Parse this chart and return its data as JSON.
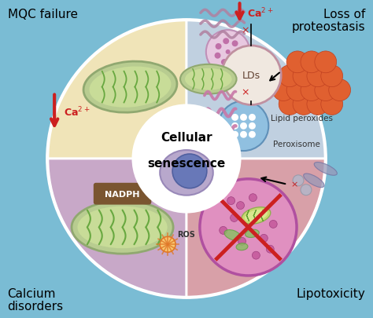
{
  "background_color": "#7abcd4",
  "quadrant_colors": {
    "top_left": "#f0e4b8",
    "top_right": "#c0d0e0",
    "bottom_left": "#c8a8c8",
    "bottom_right": "#d8a0a8"
  },
  "center_circle_color": "#ffffff",
  "center_text": [
    "Cellular",
    "senescence"
  ],
  "corner_labels": {
    "top_left": "MQC failure",
    "top_right_1": "Loss of",
    "top_right_2": "proteostasis",
    "bottom_left_1": "Calcium",
    "bottom_left_2": "disorders",
    "bottom_right": "Lipotoxicity"
  },
  "colors": {
    "mito_outer_border": "#90a870",
    "mito_outer_fill": "#b8cc90",
    "mito_inner_fill": "#c8dc98",
    "mito_crista": "#68a840",
    "nadph_box": "#7a5530",
    "lysosome_fill": "#e090c0",
    "lysosome_border": "#b050a0",
    "peroxisome_fill": "#90c0e0",
    "peroxisome_border": "#6090b8",
    "lipid_fill": "#e06030",
    "lipid_border": "#c04020",
    "lds_fill": "#f0e8e0",
    "lds_border": "#c090a0",
    "ca_arrow_up": "#cc2020",
    "ca_arrow_down": "#2030a0",
    "cell_body": "#b8a8cc",
    "cell_nucleus": "#6878b8",
    "er_color": "#c878a8",
    "ros_color": "#e07828",
    "ros_fill": "#f8c870"
  }
}
